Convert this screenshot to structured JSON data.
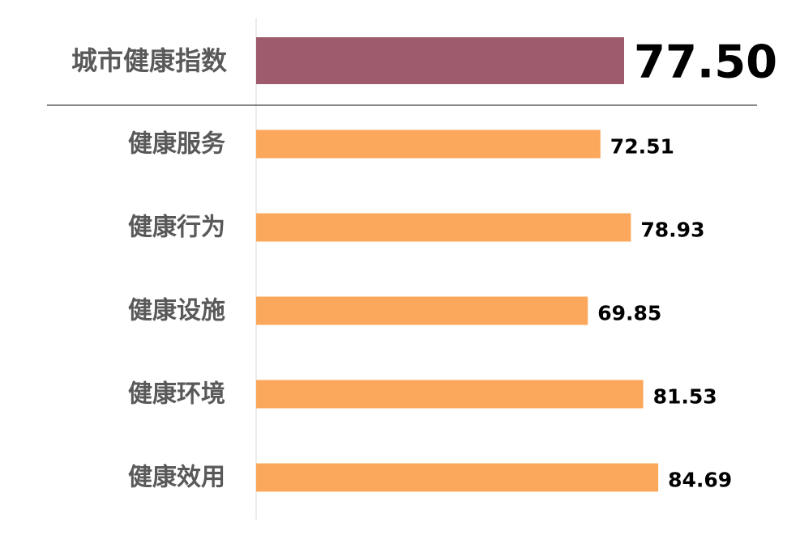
{
  "chart_data": {
    "type": "bar",
    "orientation": "horizontal",
    "categories": [
      "城市健康指数",
      "健康服务",
      "健康行为",
      "健康设施",
      "健康环境",
      "健康效用"
    ],
    "values": [
      77.5,
      72.51,
      78.93,
      69.85,
      81.53,
      84.69
    ],
    "value_labels": [
      "77.50",
      "72.51",
      "78.93",
      "69.85",
      "81.53",
      "84.69"
    ],
    "highlight_index": 0,
    "xlim": [
      0,
      100
    ],
    "grid": false,
    "colors": {
      "highlight_bar": "#9E5B6E",
      "bar": "#FCA85C",
      "axis_line": "#D9D9D9",
      "separator": "#404040"
    }
  }
}
